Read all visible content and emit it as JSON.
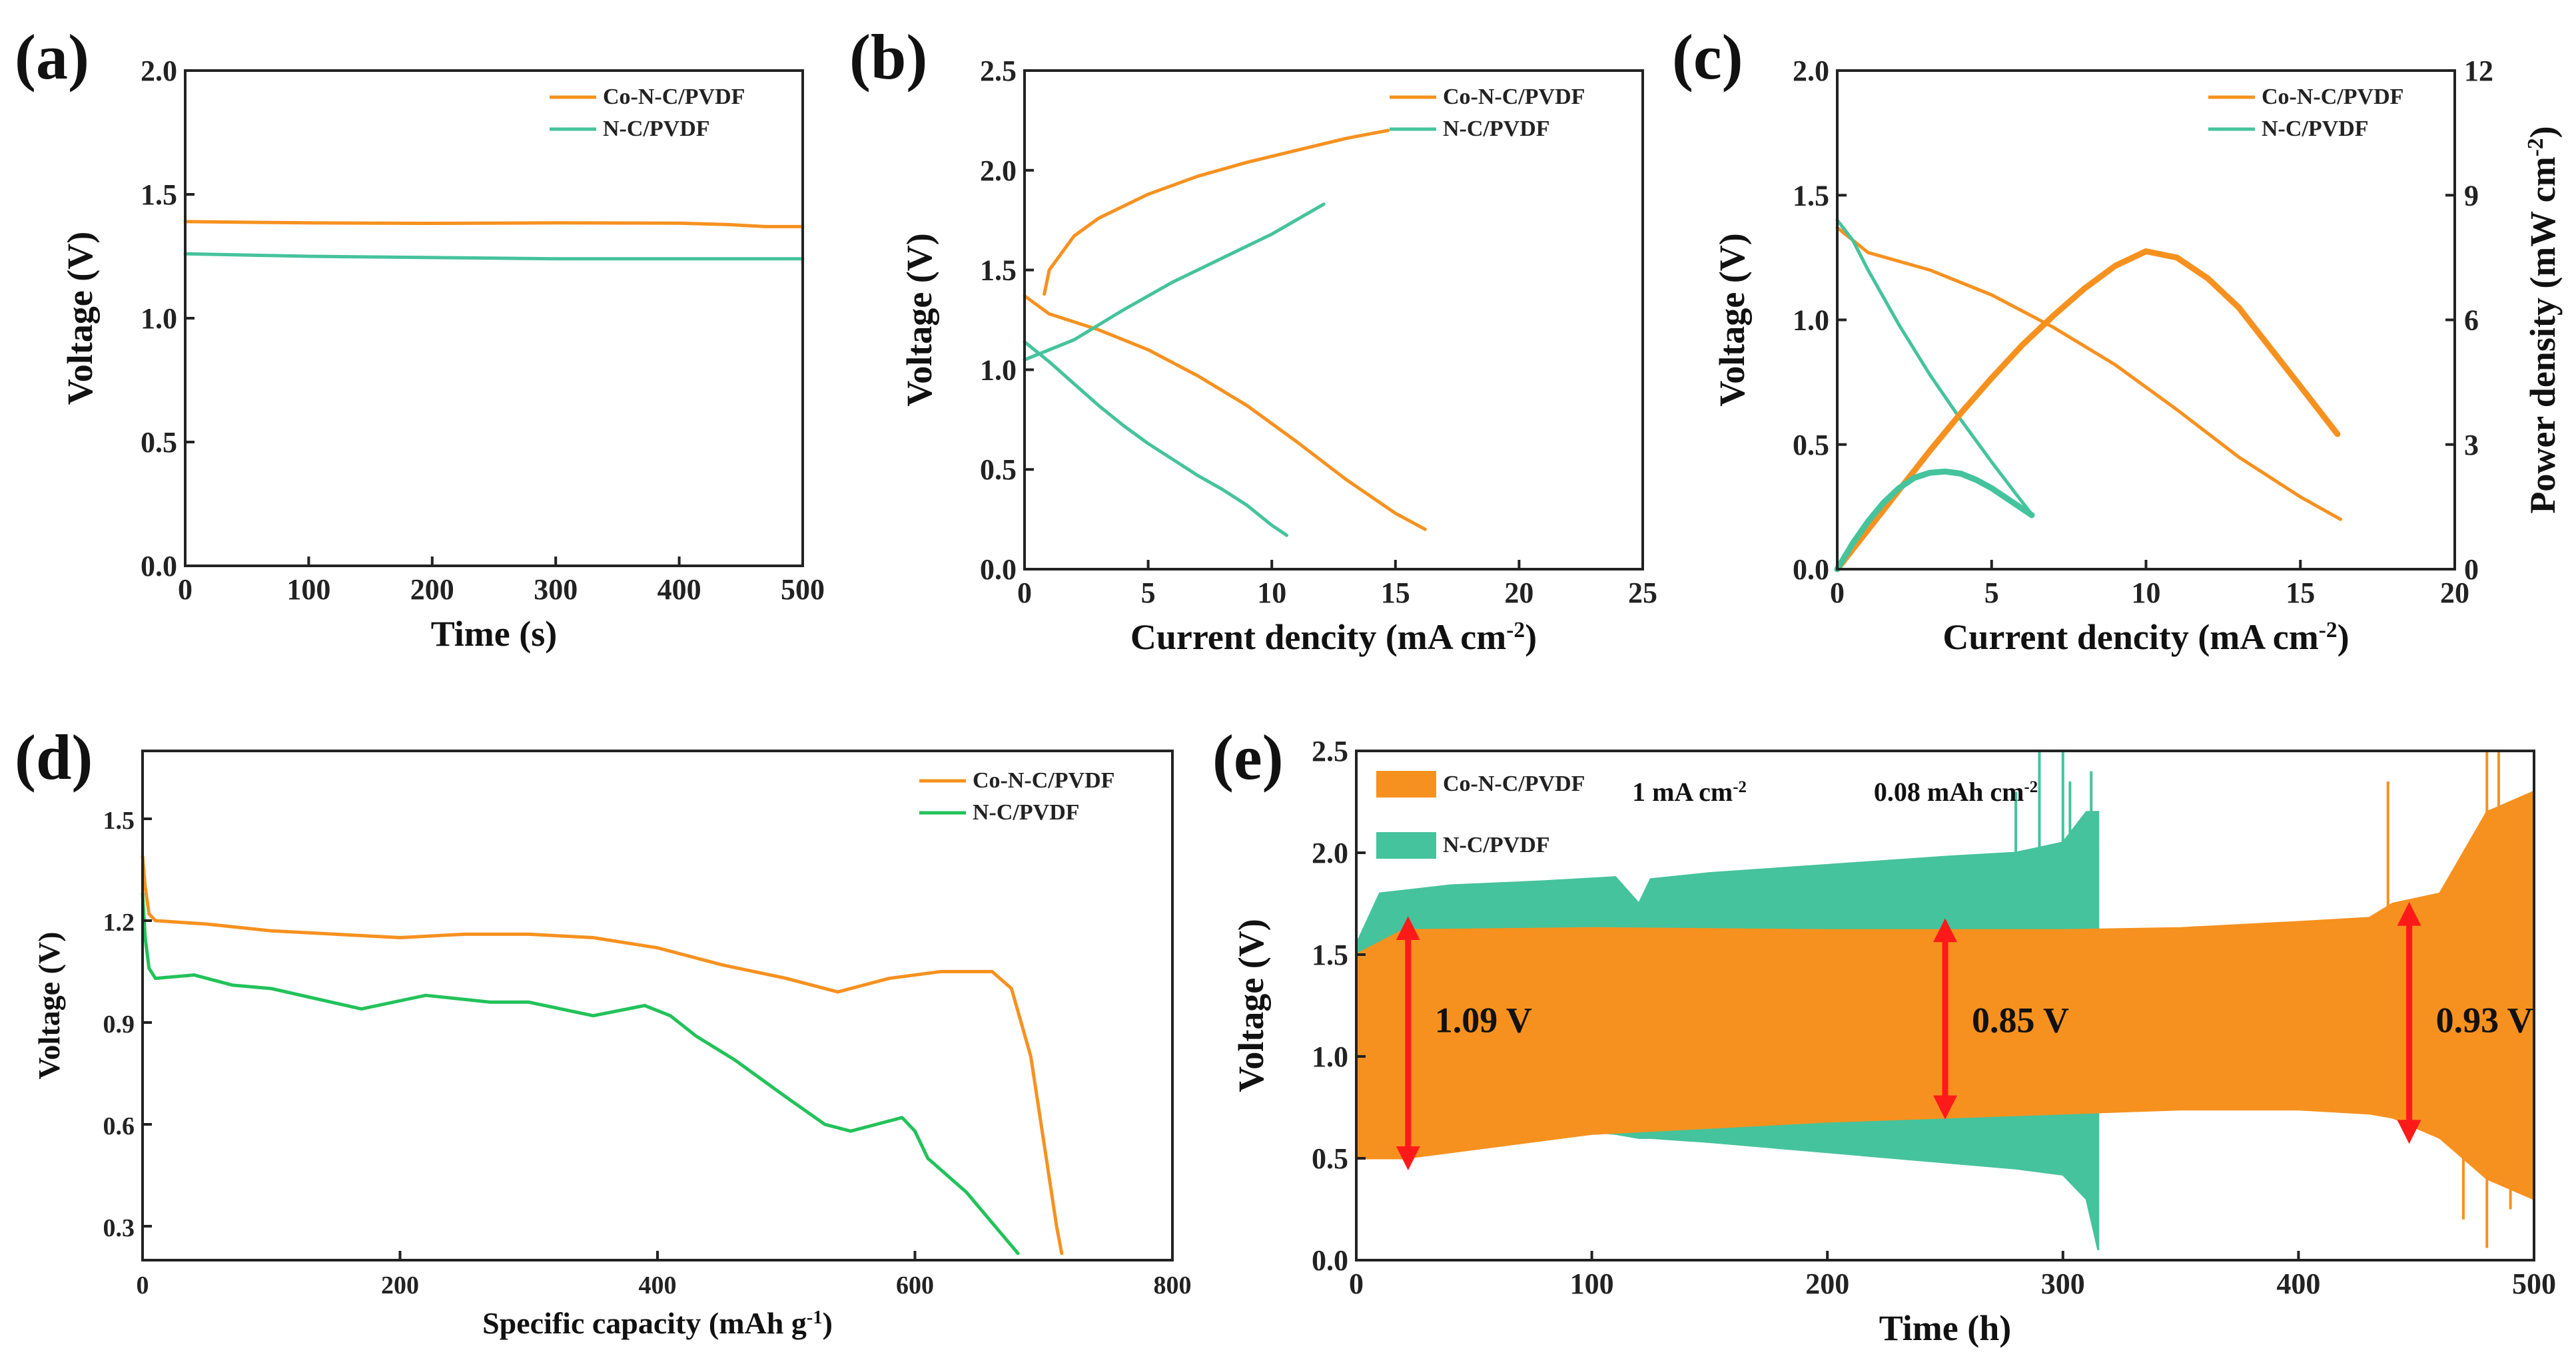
{
  "colors": {
    "orange": "#f6911f",
    "teal": "#45c39c",
    "green": "#22c25a",
    "red": "#ff1a1a",
    "axis": "#222222"
  },
  "chart_data": [
    {
      "id": "a",
      "panel_label": "(a)",
      "type": "line",
      "xlabel": "Time (s)",
      "ylabel": "Voltage (V)",
      "xlim": [
        0,
        500
      ],
      "ylim": [
        0,
        2.0
      ],
      "xticks": [
        0,
        100,
        200,
        300,
        400,
        500
      ],
      "yticks": [
        0.0,
        0.5,
        1.0,
        1.5,
        2.0
      ],
      "xtick_labels": [
        "0",
        "100",
        "200",
        "300",
        "400",
        "500"
      ],
      "ytick_labels": [
        "0.0",
        "0.5",
        "1.0",
        "1.5",
        "2.0"
      ],
      "legend": [
        "Co-N-C/PVDF",
        "N-C/PVDF"
      ],
      "series": [
        {
          "name": "Co-N-C/PVDF",
          "color": "orange",
          "x": [
            0,
            100,
            200,
            300,
            400,
            440,
            470,
            500
          ],
          "y": [
            1.39,
            1.385,
            1.383,
            1.385,
            1.384,
            1.378,
            1.37,
            1.37
          ]
        },
        {
          "name": "N-C/PVDF",
          "color": "teal",
          "x": [
            0,
            100,
            200,
            300,
            400,
            500
          ],
          "y": [
            1.26,
            1.25,
            1.245,
            1.24,
            1.24,
            1.24
          ]
        }
      ]
    },
    {
      "id": "b",
      "panel_label": "(b)",
      "type": "line",
      "xlabel": "Current dencity (mA cm",
      "xlabel_sup": "-2",
      "xlabel_end": ")",
      "ylabel": "Voltage (V)",
      "xlim": [
        0,
        25
      ],
      "ylim": [
        0,
        2.5
      ],
      "xticks": [
        0,
        5,
        10,
        15,
        20,
        25
      ],
      "yticks": [
        0.0,
        0.5,
        1.0,
        1.5,
        2.0,
        2.5
      ],
      "xtick_labels": [
        "0",
        "5",
        "10",
        "15",
        "20",
        "25"
      ],
      "ytick_labels": [
        "0.0",
        "0.5",
        "1.0",
        "1.5",
        "2.0",
        "2.5"
      ],
      "legend": [
        "Co-N-C/PVDF",
        "N-C/PVDF"
      ],
      "series": [
        {
          "name": "Co-N-C/PVDF discharge",
          "color": "orange",
          "x": [
            0,
            1,
            3,
            5,
            7,
            9,
            11,
            13,
            15,
            16.2
          ],
          "y": [
            1.37,
            1.28,
            1.2,
            1.1,
            0.97,
            0.82,
            0.64,
            0.45,
            0.28,
            0.2
          ]
        },
        {
          "name": "Co-N-C/PVDF charge",
          "color": "orange",
          "x": [
            0.8,
            1,
            2,
            3,
            5,
            7,
            9,
            11,
            13,
            14.7
          ],
          "y": [
            1.38,
            1.5,
            1.67,
            1.76,
            1.88,
            1.97,
            2.04,
            2.1,
            2.16,
            2.2
          ]
        },
        {
          "name": "N-C/PVDF discharge",
          "color": "teal",
          "x": [
            0,
            1,
            2,
            3,
            4,
            5,
            6,
            7,
            8,
            9,
            10,
            10.6
          ],
          "y": [
            1.14,
            1.04,
            0.93,
            0.82,
            0.72,
            0.63,
            0.55,
            0.47,
            0.4,
            0.32,
            0.22,
            0.17
          ]
        },
        {
          "name": "N-C/PVDF charge",
          "color": "teal",
          "x": [
            0,
            2,
            4,
            6,
            8,
            10,
            12.1
          ],
          "y": [
            1.05,
            1.15,
            1.3,
            1.44,
            1.56,
            1.68,
            1.83
          ]
        }
      ]
    },
    {
      "id": "c",
      "panel_label": "(c)",
      "type": "line",
      "xlabel": "Current dencity (mA cm",
      "xlabel_sup": "-2",
      "xlabel_end": ")",
      "ylabel": "Voltage (V)",
      "y2label": "Power density (mW cm",
      "y2label_sup": "-2",
      "y2label_end": ")",
      "xlim": [
        0,
        20
      ],
      "ylim": [
        0,
        2.0
      ],
      "y2lim": [
        0,
        12
      ],
      "xticks": [
        0,
        5,
        10,
        15,
        20
      ],
      "yticks": [
        0.0,
        0.5,
        1.0,
        1.5,
        2.0
      ],
      "y2ticks": [
        0,
        3,
        6,
        9,
        12
      ],
      "xtick_labels": [
        "0",
        "5",
        "10",
        "15",
        "20"
      ],
      "ytick_labels": [
        "0.0",
        "0.5",
        "1.0",
        "1.5",
        "2.0"
      ],
      "y2tick_labels": [
        "0",
        "3",
        "6",
        "9",
        "12"
      ],
      "legend": [
        "Co-N-C/PVDF",
        "N-C/PVDF"
      ],
      "series": [
        {
          "name": "Co-N-C/PVDF voltage",
          "color": "orange",
          "axis": "y",
          "x": [
            0,
            1,
            3,
            5,
            7,
            9,
            11,
            13,
            15,
            16.3
          ],
          "y": [
            1.37,
            1.27,
            1.2,
            1.1,
            0.97,
            0.82,
            0.64,
            0.45,
            0.29,
            0.2
          ]
        },
        {
          "name": "N-C/PVDF voltage",
          "color": "teal",
          "axis": "y",
          "x": [
            0,
            0.5,
            1,
            2,
            3,
            4,
            5,
            5.8,
            6.3
          ],
          "y": [
            1.4,
            1.32,
            1.2,
            0.98,
            0.78,
            0.6,
            0.43,
            0.3,
            0.22
          ]
        },
        {
          "name": "Co-N-C/PVDF power",
          "color": "orange",
          "axis": "y2",
          "x": [
            0,
            1,
            2,
            3,
            4,
            5,
            6,
            7,
            8,
            9,
            10,
            11,
            12,
            13,
            14,
            15,
            16.2
          ],
          "y": [
            0,
            0.95,
            1.9,
            2.85,
            3.75,
            4.6,
            5.4,
            6.1,
            6.75,
            7.3,
            7.65,
            7.5,
            7.0,
            6.3,
            5.35,
            4.4,
            3.25
          ]
        },
        {
          "name": "N-C/PVDF power",
          "color": "teal",
          "axis": "y2",
          "x": [
            0,
            0.5,
            1,
            1.5,
            2,
            2.5,
            3,
            3.5,
            4,
            4.5,
            5,
            5.5,
            6,
            6.3
          ],
          "y": [
            0,
            0.62,
            1.15,
            1.6,
            1.95,
            2.2,
            2.32,
            2.35,
            2.3,
            2.15,
            1.95,
            1.7,
            1.45,
            1.3
          ]
        }
      ]
    },
    {
      "id": "d",
      "panel_label": "(d)",
      "type": "line",
      "xlabel": "Specific capacity (mAh g",
      "xlabel_sup": "-1",
      "xlabel_end": ")",
      "ylabel": "Voltage (V)",
      "xlim": [
        0,
        800
      ],
      "ylim": [
        0.2,
        1.7
      ],
      "xticks": [
        0,
        200,
        400,
        600,
        800
      ],
      "yticks": [
        0.3,
        0.6,
        0.9,
        1.2,
        1.5
      ],
      "xtick_labels": [
        "0",
        "200",
        "400",
        "600",
        "800"
      ],
      "ytick_labels": [
        "0.3",
        "0.6",
        "0.9",
        "1.2",
        "1.5"
      ],
      "legend": [
        "Co-N-C/PVDF",
        "N-C/PVDF"
      ],
      "series": [
        {
          "name": "Co-N-C/PVDF",
          "color": "orange",
          "x": [
            0,
            2,
            5,
            10,
            50,
            100,
            150,
            200,
            250,
            300,
            350,
            400,
            450,
            500,
            540,
            580,
            620,
            660,
            675,
            690,
            700,
            710,
            714
          ],
          "y": [
            1.39,
            1.3,
            1.22,
            1.2,
            1.19,
            1.17,
            1.16,
            1.15,
            1.16,
            1.16,
            1.15,
            1.12,
            1.07,
            1.03,
            0.99,
            1.03,
            1.05,
            1.05,
            1.0,
            0.8,
            0.55,
            0.3,
            0.22
          ]
        },
        {
          "name": "N-C/PVDF",
          "color": "green",
          "x": [
            0,
            2,
            5,
            10,
            40,
            70,
            100,
            170,
            220,
            270,
            300,
            350,
            390,
            410,
            430,
            460,
            500,
            530,
            550,
            570,
            590,
            600,
            610,
            640,
            660,
            680
          ],
          "y": [
            1.28,
            1.15,
            1.06,
            1.03,
            1.04,
            1.01,
            1.0,
            0.94,
            0.98,
            0.96,
            0.96,
            0.92,
            0.95,
            0.92,
            0.86,
            0.79,
            0.68,
            0.6,
            0.58,
            0.6,
            0.62,
            0.58,
            0.5,
            0.4,
            0.31,
            0.22
          ]
        }
      ]
    },
    {
      "id": "e",
      "panel_label": "(e)",
      "type": "area",
      "xlabel": "Time (h)",
      "ylabel": "Voltage (V)",
      "xlim": [
        0,
        500
      ],
      "ylim": [
        0,
        2.5
      ],
      "xticks": [
        0,
        100,
        200,
        300,
        400,
        500
      ],
      "yticks": [
        0.0,
        0.5,
        1.0,
        1.5,
        2.0,
        2.5
      ],
      "xtick_labels": [
        "0",
        "100",
        "200",
        "300",
        "400",
        "500"
      ],
      "ytick_labels": [
        "0.0",
        "0.5",
        "1.0",
        "1.5",
        "2.0",
        "2.5"
      ],
      "legend": [
        "Co-N-C/PVDF",
        "N-C/PVDF"
      ],
      "conditions": [
        "1 mA cm",
        "0.08 mAh cm"
      ],
      "conditions_sup": [
        "-2",
        "-2"
      ],
      "series": [
        {
          "name": "N-C/PVDF",
          "color": "teal",
          "x": [
            0,
            10,
            40,
            80,
            110,
            120,
            125,
            150,
            200,
            250,
            280,
            300,
            310,
            315
          ],
          "upper": [
            1.55,
            1.8,
            1.84,
            1.86,
            1.88,
            1.75,
            1.87,
            1.9,
            1.94,
            1.98,
            2.0,
            2.05,
            2.2,
            2.2
          ],
          "lower": [
            0.5,
            0.5,
            0.6,
            0.65,
            0.62,
            0.6,
            0.6,
            0.58,
            0.53,
            0.48,
            0.45,
            0.42,
            0.3,
            0.05
          ]
        },
        {
          "name": "Co-N-C/PVDF",
          "color": "orange",
          "x": [
            0,
            20,
            100,
            200,
            250,
            300,
            350,
            400,
            430,
            440,
            460,
            480,
            500
          ],
          "upper": [
            1.5,
            1.62,
            1.63,
            1.62,
            1.62,
            1.62,
            1.63,
            1.66,
            1.68,
            1.75,
            1.8,
            2.2,
            2.3
          ],
          "lower": [
            0.5,
            0.5,
            0.62,
            0.68,
            0.7,
            0.72,
            0.74,
            0.74,
            0.72,
            0.7,
            0.6,
            0.4,
            0.3
          ]
        }
      ],
      "annotations": [
        {
          "label": "1.09 V",
          "x": 22,
          "y_from": 0.5,
          "y_to": 1.63
        },
        {
          "label": "0.85 V",
          "x": 250,
          "y_from": 0.75,
          "y_to": 1.62
        },
        {
          "label": "0.93 V",
          "x": 447,
          "y_from": 0.63,
          "y_to": 1.7
        }
      ]
    }
  ]
}
